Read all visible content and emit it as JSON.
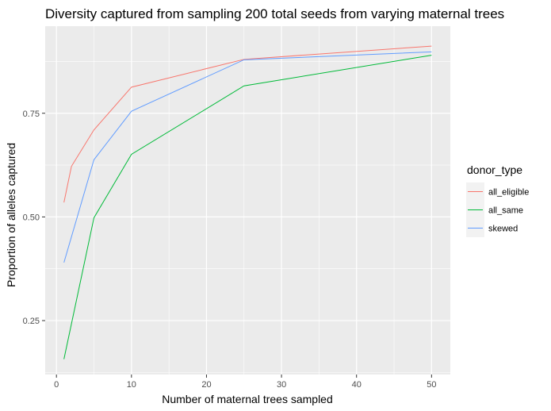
{
  "chart_data": {
    "type": "line",
    "title": "Diversity captured from sampling 200 total seeds from varying maternal trees",
    "xlabel": "Number of maternal trees sampled",
    "ylabel": "Proportion of alleles captured",
    "xlim": [
      -1.5,
      52.5
    ],
    "ylim": [
      0.12,
      0.96
    ],
    "x_ticks": [
      0,
      10,
      20,
      30,
      40,
      50
    ],
    "y_ticks": [
      0.25,
      0.5,
      0.75
    ],
    "x_tick_labels": [
      "0",
      "10",
      "20",
      "30",
      "40",
      "50"
    ],
    "y_tick_labels": [
      "0.25",
      "0.50",
      "0.75"
    ],
    "grid": true,
    "background": "#ebebeb",
    "legend": {
      "title": "donor_type",
      "placement": "right"
    },
    "series": [
      {
        "name": "all_eligible",
        "color": "#f8766d",
        "points": [
          [
            1,
            0.535
          ],
          [
            2,
            0.622
          ],
          [
            5,
            0.71
          ],
          [
            10,
            0.813
          ],
          [
            25,
            0.88
          ],
          [
            50,
            0.912
          ]
        ]
      },
      {
        "name": "all_same",
        "color": "#00ba38",
        "points": [
          [
            1,
            0.157
          ],
          [
            5,
            0.498
          ],
          [
            10,
            0.651
          ],
          [
            25,
            0.816
          ],
          [
            50,
            0.89
          ]
        ]
      },
      {
        "name": "skewed",
        "color": "#619cff",
        "points": [
          [
            1,
            0.39
          ],
          [
            5,
            0.638
          ],
          [
            10,
            0.755
          ],
          [
            25,
            0.879
          ],
          [
            50,
            0.898
          ]
        ]
      }
    ]
  }
}
